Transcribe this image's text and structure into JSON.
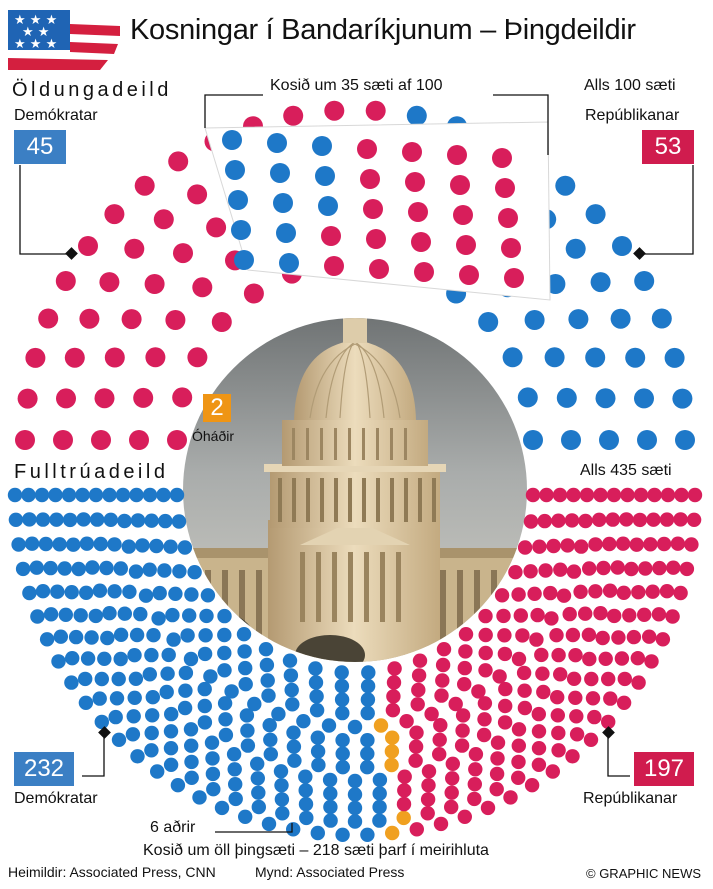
{
  "header": {
    "title": "Kosningar í Bandaríkjunum – Þingdeildir"
  },
  "senate": {
    "label": "Öldungadeild",
    "up_for_election": "Kosið um 35 sæti af 100",
    "total_label": "Alls 100 sæti"
  },
  "house": {
    "label": "Fulltrúadeild",
    "total_label": "Alls 435 sæti",
    "others_label": "6 aðrir",
    "majority_note": "Kosið um öll þingsæti – 218 sæti þarf í meirihluta"
  },
  "footer": {
    "sources": "Heimildir: Associated Press, CNN",
    "photo": "Mynd: Associated Press",
    "credit": "© GRAPHIC NEWS"
  },
  "colors": {
    "democrat": "#1e78c8",
    "republican": "#d81e5b",
    "independent": "#f0a020"
  },
  "chart_data": [
    {
      "type": "parliament",
      "chamber": "Öldungadeild",
      "total_seats": 100,
      "seats_up_for_election": 35,
      "series": [
        {
          "name": "Demókratar",
          "values": [
            45
          ],
          "color": "#1e78c8"
        },
        {
          "name": "Óháðir",
          "values": [
            2
          ],
          "color": "#f0a020"
        },
        {
          "name": "Repúblikanar",
          "values": [
            53
          ],
          "color": "#d81e5b"
        }
      ]
    },
    {
      "type": "parliament",
      "chamber": "Fulltrúadeild",
      "total_seats": 435,
      "majority": 218,
      "series": [
        {
          "name": "Demókratar",
          "values": [
            232
          ],
          "color": "#1e78c8"
        },
        {
          "name": "6 aðrir",
          "values": [
            6
          ],
          "color": "#f0a020"
        },
        {
          "name": "Repúblikanar",
          "values": [
            197
          ],
          "color": "#d81e5b"
        }
      ]
    }
  ]
}
